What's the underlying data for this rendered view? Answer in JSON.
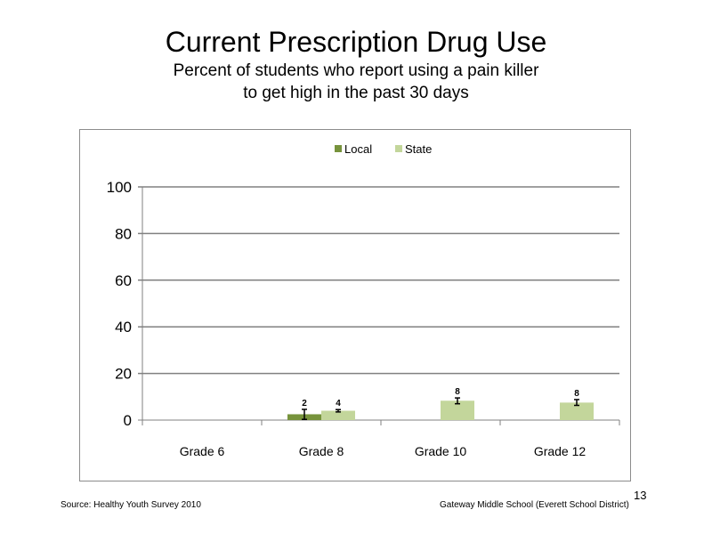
{
  "slide": {
    "title": "Current Prescription Drug Use",
    "subtitle_lines": [
      "Percent of students who report using a pain killer",
      "to get high in the past 30 days"
    ],
    "source": "Source: Healthy Youth Survey 2010",
    "school": "Gateway Middle  School (Everett School District)",
    "page_number": "13"
  },
  "chart_data": {
    "type": "bar",
    "title": "",
    "xlabel": "",
    "ylabel": "",
    "categories": [
      "Grade 6",
      "Grade 8",
      "Grade 10",
      "Grade 12"
    ],
    "series": [
      {
        "name": "Local",
        "color": "#77933c",
        "values": [
          null,
          2.5,
          null,
          null
        ],
        "labels": [
          null,
          "2",
          null,
          null
        ],
        "error": [
          null,
          [
            0.3,
            4.6
          ],
          null,
          null
        ]
      },
      {
        "name": "State",
        "color": "#c3d69b",
        "values": [
          null,
          4,
          8.3,
          7.5
        ],
        "labels": [
          null,
          "4",
          "8",
          "8"
        ],
        "error": [
          null,
          [
            3.5,
            4.5
          ],
          [
            7,
            9.5
          ],
          [
            6.3,
            8.8
          ]
        ]
      }
    ],
    "yticks": [
      "0",
      "20",
      "40",
      "60",
      "80",
      "100"
    ],
    "ylim": [
      0,
      100
    ],
    "grid": true,
    "legend": "top-center",
    "colors": {
      "grid": "#808080",
      "axis": "#808080",
      "text": "#000000"
    }
  }
}
